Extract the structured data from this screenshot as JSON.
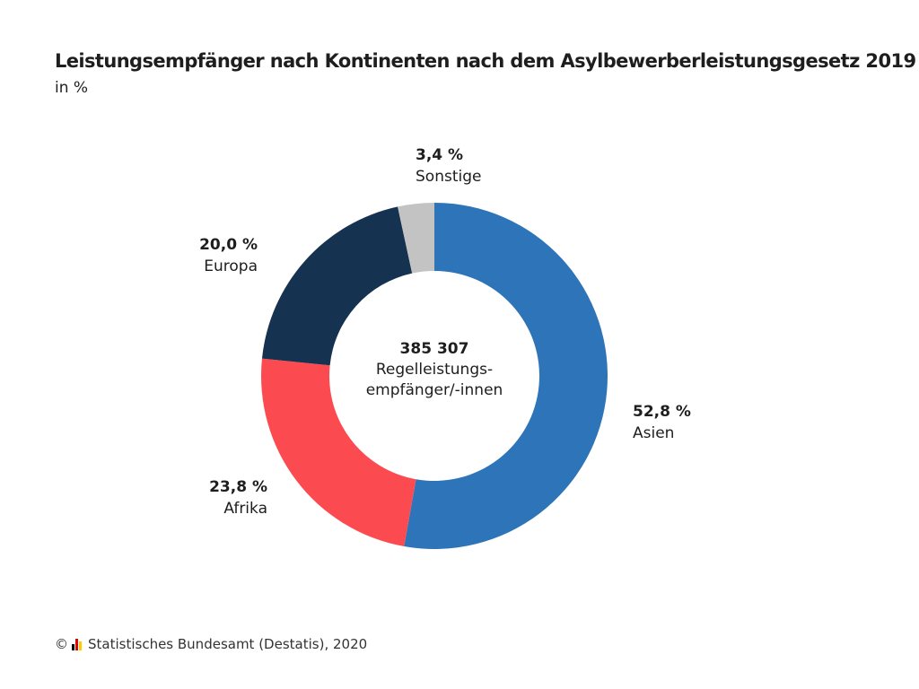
{
  "header": {
    "title": "Leistungsempfänger nach Kontinenten nach dem Asylbewerberleistungsgesetz 2019",
    "subtitle": "in %"
  },
  "chart_data": {
    "type": "pie",
    "variant": "donut",
    "title": "Leistungsempfänger nach Kontinenten nach dem Asylbewerberleistungsgesetz 2019",
    "subtitle": "in %",
    "unit": "%",
    "slices": [
      {
        "label": "Asien",
        "value": 52.8,
        "value_text": "52,8 %",
        "color": "#2e74b8"
      },
      {
        "label": "Afrika",
        "value": 23.8,
        "value_text": "23,8 %",
        "color": "#fb4b50"
      },
      {
        "label": "Europa",
        "value": 20.0,
        "value_text": "20,0 %",
        "color": "#153250"
      },
      {
        "label": "Sonstige",
        "value": 3.4,
        "value_text": "3,4 %",
        "color": "#c3c3c3"
      }
    ],
    "center": {
      "total": "385 307",
      "line1": "Regelleistungs-",
      "line2": "empfänger/-innen"
    },
    "legend": "none"
  },
  "footer": {
    "source": "Statistisches Bundesamt (Destatis), 2020",
    "copyright_symbol": "©",
    "logo_colors": [
      "#000000",
      "#dd0000",
      "#ffcc00"
    ]
  }
}
